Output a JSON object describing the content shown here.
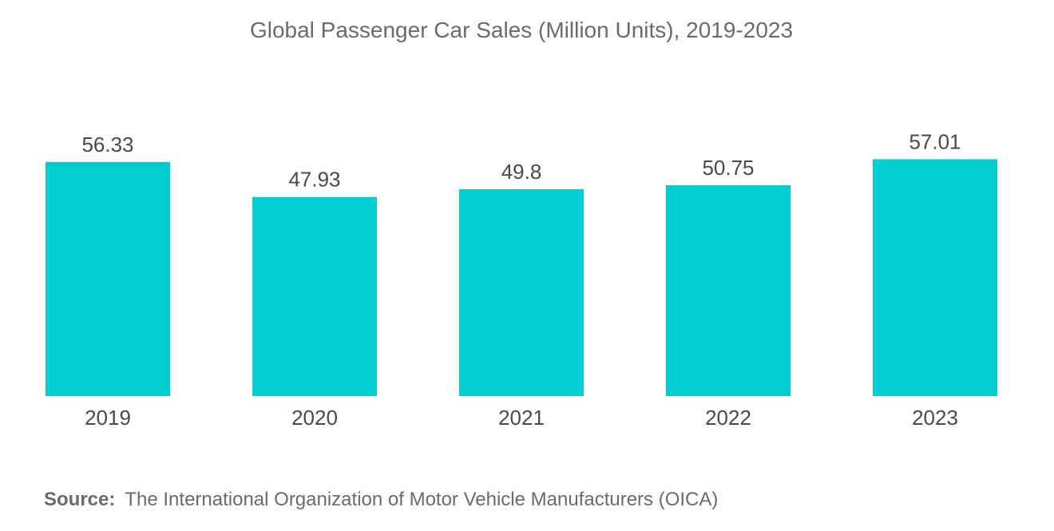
{
  "chart_data": {
    "type": "bar",
    "title": "Global Passenger Car Sales (Million Units), 2019-2023",
    "categories": [
      "2019",
      "2020",
      "2021",
      "2022",
      "2023"
    ],
    "values": [
      56.33,
      47.93,
      49.8,
      50.75,
      57.01
    ],
    "value_labels": [
      "56.33",
      "47.93",
      "49.8",
      "50.75",
      "57.01"
    ],
    "xlabel": "",
    "ylabel": "",
    "ylim": [
      0,
      60
    ],
    "grid": false,
    "bar_color": "#00CED1"
  },
  "source": {
    "label": "Source:",
    "text": "The International Organization of Motor Vehicle Manufacturers (OICA)"
  }
}
